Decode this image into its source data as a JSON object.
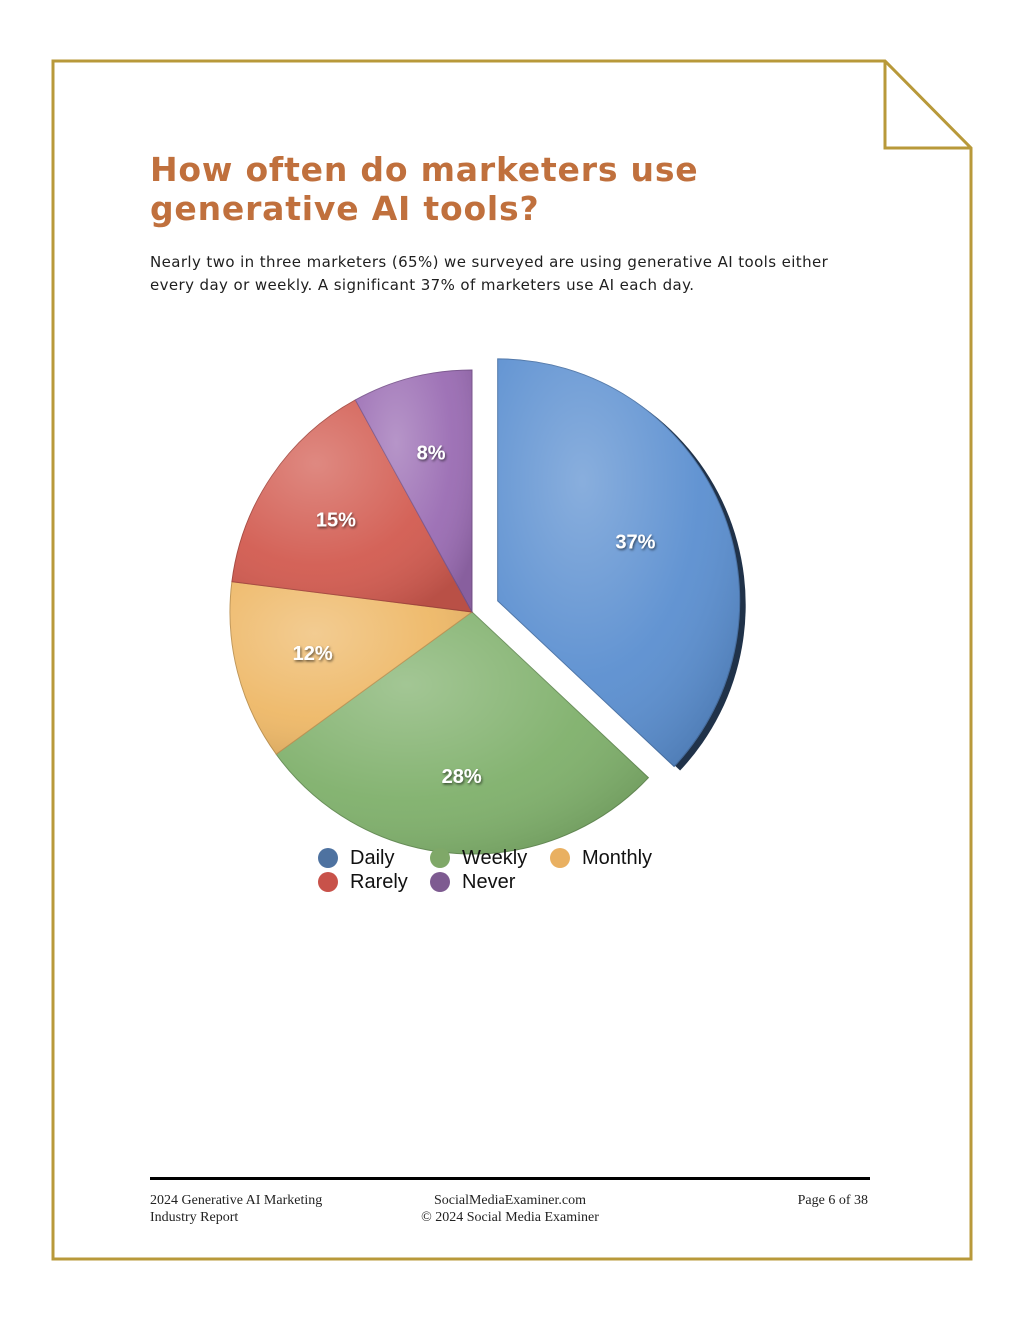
{
  "page": {
    "title": "How often do marketers use generative AI tools?",
    "intro": "Nearly two in three marketers (65%) we surveyed are using generative AI tools either every day or weekly. A significant 37% of marketers use AI each day."
  },
  "chart_data": {
    "type": "pie",
    "title": "",
    "slices": [
      {
        "label": "Daily",
        "value": 37,
        "display": "37%",
        "color": "#5b8fd0",
        "exploded": true
      },
      {
        "label": "Weekly",
        "value": 28,
        "display": "28%",
        "color": "#7fb06b",
        "exploded": false
      },
      {
        "label": "Monthly",
        "value": 12,
        "display": "12%",
        "color": "#eeb867",
        "exploded": false
      },
      {
        "label": "Rarely",
        "value": 15,
        "display": "15%",
        "color": "#d25b50",
        "exploded": false
      },
      {
        "label": "Never",
        "value": 8,
        "display": "8%",
        "color": "#9a6cb3",
        "exploded": false
      }
    ],
    "legend": {
      "placement": "bottom",
      "items": [
        {
          "label": "Daily",
          "color": "#4e72a0"
        },
        {
          "label": "Weekly",
          "color": "#7fa868"
        },
        {
          "label": "Monthly",
          "color": "#e9b061"
        },
        {
          "label": "Rarely",
          "color": "#c8524a"
        },
        {
          "label": "Never",
          "color": "#7e5b91"
        }
      ]
    }
  },
  "footer": {
    "left_line1": "2024 Generative AI Marketing",
    "left_line2": "Industry Report",
    "center_line1": "SocialMediaExaminer.com",
    "center_line2": "© 2024 Social Media Examiner",
    "right": "Page 6 of 38"
  },
  "colors": {
    "frame": "#b8993a",
    "title": "#c0703d"
  }
}
